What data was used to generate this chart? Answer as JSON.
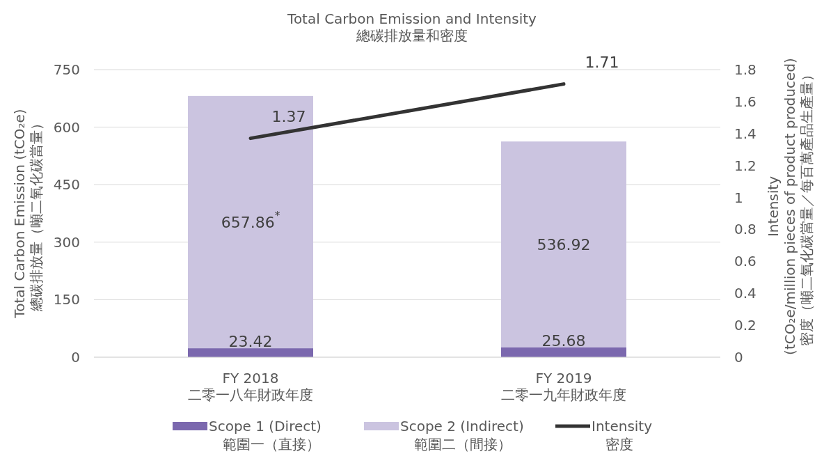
{
  "chart_data": {
    "type": "bar",
    "title": "Total Carbon Emission and Intensity\n總碳排放量和密度",
    "categories": [
      "FY 2018\n二零一八年財政年度",
      "FY 2019\n二零一九年財政年度"
    ],
    "stacked": true,
    "series": [
      {
        "name": "Scope 1 (Direct)\n範圍一（直接）",
        "color": "#7b68ae",
        "values": [
          23.42,
          25.68
        ],
        "value_labels": [
          "23.42",
          "25.68"
        ]
      },
      {
        "name": "Scope 2 (Indirect)\n範圍二（間接）",
        "color": "#cbc4e0",
        "values": [
          657.86,
          536.92
        ],
        "value_labels": [
          "657.86$^{*}$",
          "536.92"
        ]
      },
      {
        "name": "Intensity\n密度",
        "type": "line",
        "axis": "y2",
        "color": "#333333",
        "values": [
          1.37,
          1.71
        ],
        "value_labels": [
          "1.37",
          "1.71"
        ]
      }
    ],
    "ylabel": "Total Carbon Emission (tCO₂e)\n總碳排放量（噸二氧化碳當量）",
    "y2label": "Intensity\n(tCO₂e/million pieces of product produced)\n密度（噸二氧化碳當量／每百萬產品生產量）",
    "ylim": [
      0,
      750
    ],
    "yticks": [
      0,
      150,
      300,
      450,
      600,
      750
    ],
    "y2lim": [
      0,
      1.8
    ],
    "y2ticks": [
      0,
      0.2,
      0.4,
      0.6,
      0.8,
      1,
      1.2,
      1.4,
      1.6,
      1.8
    ],
    "grid": "y",
    "legend": "bottom"
  }
}
